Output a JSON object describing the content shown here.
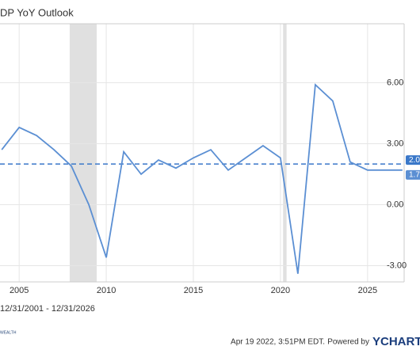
{
  "chart_data": {
    "type": "line",
    "title": "DP YoY Outlook",
    "x": [
      2004,
      2005,
      2006,
      2007,
      2008,
      2009,
      2010,
      2011,
      2012,
      2013,
      2014,
      2015,
      2016,
      2017,
      2018,
      2019,
      2020,
      2021,
      2022,
      2023,
      2024,
      2025,
      2026,
      2027
    ],
    "series": [
      {
        "name": "GDP YoY",
        "color": "#5b8fd3",
        "values": [
          2.7,
          3.8,
          3.4,
          2.7,
          1.9,
          0.0,
          -2.6,
          2.6,
          1.5,
          2.2,
          1.8,
          2.3,
          2.7,
          1.7,
          2.3,
          2.9,
          2.3,
          -3.4,
          5.9,
          5.1,
          2.1,
          1.7,
          1.7,
          1.7
        ]
      }
    ],
    "xlim": [
      2003.9,
      2027.1
    ],
    "xticks": [
      2005,
      2010,
      2015,
      2020,
      2025
    ],
    "ylim": [
      -3.8,
      8.9
    ],
    "yticks": [
      {
        "value": 6,
        "label": "6.00"
      },
      {
        "value": 3,
        "label": "3.00"
      },
      {
        "value": 0,
        "label": "0.00"
      },
      {
        "value": -3,
        "label": "-3.00"
      }
    ],
    "grid": true,
    "recessions": [
      [
        2007.9,
        2009.45
      ],
      [
        2020.15,
        2020.35
      ]
    ],
    "reference_lines": [
      {
        "value": 2.0,
        "label": "2.0",
        "color": "#3a78c9"
      },
      {
        "value": 1.7,
        "label": "1.7",
        "color": "#5b8fd3"
      }
    ],
    "date_range": "12/31/2001 - 12/31/2026",
    "timestamp": "Apr 19 2022, 3:51PM EDT.",
    "powered_by": "Powered by",
    "brand": "YCHARTS",
    "logo_text": "WEALTH"
  }
}
